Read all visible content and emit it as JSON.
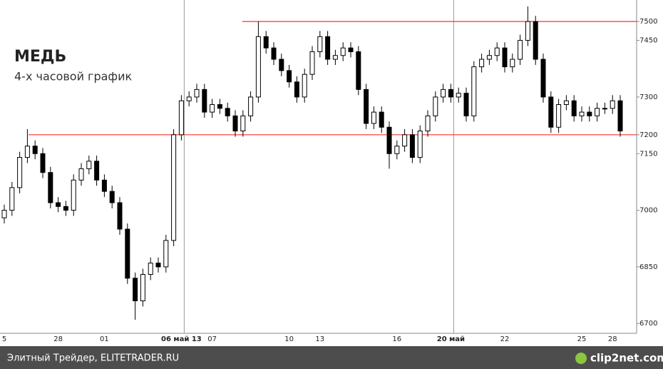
{
  "chart_data": {
    "type": "candlestick",
    "title": "МЕДЬ",
    "subtitle": "4-х часовой график",
    "footer": "Элитный Трейдер, ELITETRADER.RU",
    "watermark": "clip2net.com",
    "categories": [
      "5",
      null,
      null,
      null,
      null,
      null,
      null,
      "28",
      null,
      null,
      null,
      null,
      null,
      "01",
      null,
      null,
      null,
      null,
      null,
      null,
      null,
      null,
      null,
      "06 май 13",
      null,
      null,
      null,
      "07",
      null,
      null,
      null,
      null,
      null,
      null,
      null,
      null,
      null,
      "10",
      null,
      null,
      null,
      "13",
      null,
      null,
      null,
      null,
      null,
      null,
      null,
      null,
      null,
      "16",
      null,
      null,
      null,
      null,
      null,
      null,
      "20 май",
      null,
      null,
      null,
      null,
      null,
      null,
      "22",
      null,
      null,
      null,
      null,
      null,
      null,
      null,
      null,
      null,
      "25",
      null,
      null,
      null,
      "28",
      null
    ],
    "open": [
      6980,
      7000,
      7060,
      7140,
      7170,
      7150,
      7100,
      7020,
      7010,
      7000,
      7080,
      7110,
      7130,
      7080,
      7050,
      7020,
      6950,
      6820,
      6760,
      6830,
      6860,
      6850,
      6920,
      7200,
      7290,
      7300,
      7320,
      7260,
      7280,
      7270,
      7250,
      7210,
      7250,
      7300,
      7460,
      7430,
      7400,
      7370,
      7340,
      7300,
      7360,
      7420,
      7460,
      7400,
      7410,
      7430,
      7420,
      7320,
      7230,
      7260,
      7220,
      7150,
      7170,
      7200,
      7140,
      7210,
      7250,
      7300,
      7320,
      7300,
      7310,
      7250,
      7380,
      7400,
      7410,
      7430,
      7380,
      7400,
      7450,
      7500,
      7400,
      7300,
      7220,
      7280,
      7290,
      7250,
      7260,
      7250,
      7270,
      7270,
      7290
    ],
    "high": [
      7015,
      7075,
      7155,
      7215,
      7185,
      7165,
      7115,
      7035,
      7025,
      7095,
      7125,
      7145,
      7145,
      7095,
      7065,
      7035,
      6965,
      6835,
      6845,
      6875,
      6875,
      6935,
      7215,
      7305,
      7315,
      7335,
      7335,
      7295,
      7295,
      7285,
      7265,
      7265,
      7315,
      7500,
      7475,
      7445,
      7415,
      7385,
      7355,
      7375,
      7435,
      7475,
      7475,
      7425,
      7445,
      7445,
      7435,
      7335,
      7275,
      7275,
      7235,
      7185,
      7215,
      7215,
      7225,
      7265,
      7315,
      7335,
      7335,
      7325,
      7325,
      7395,
      7415,
      7425,
      7445,
      7445,
      7415,
      7465,
      7540,
      7515,
      7415,
      7315,
      7295,
      7305,
      7305,
      7275,
      7275,
      7285,
      7285,
      7305,
      7305
    ],
    "low": [
      6965,
      6985,
      7045,
      7125,
      7135,
      7085,
      7005,
      6995,
      6985,
      6985,
      7065,
      7095,
      7065,
      7035,
      7005,
      6935,
      6805,
      6710,
      6745,
      6815,
      6835,
      6835,
      6905,
      7185,
      7275,
      7285,
      7245,
      7245,
      7255,
      7235,
      7195,
      7195,
      7235,
      7285,
      7415,
      7385,
      7355,
      7325,
      7285,
      7285,
      7345,
      7405,
      7385,
      7385,
      7395,
      7405,
      7305,
      7215,
      7215,
      7205,
      7110,
      7135,
      7155,
      7125,
      7125,
      7195,
      7235,
      7285,
      7285,
      7285,
      7235,
      7235,
      7365,
      7385,
      7395,
      7365,
      7365,
      7385,
      7435,
      7385,
      7285,
      7205,
      7205,
      7265,
      7235,
      7235,
      7235,
      7235,
      7255,
      7255,
      7195
    ],
    "close": [
      7000,
      7060,
      7140,
      7170,
      7150,
      7100,
      7020,
      7010,
      7000,
      7080,
      7110,
      7130,
      7080,
      7050,
      7020,
      6950,
      6820,
      6760,
      6830,
      6860,
      6850,
      6920,
      7200,
      7290,
      7300,
      7320,
      7260,
      7280,
      7270,
      7250,
      7210,
      7250,
      7300,
      7460,
      7430,
      7400,
      7370,
      7340,
      7300,
      7360,
      7420,
      7460,
      7400,
      7410,
      7430,
      7420,
      7320,
      7230,
      7260,
      7220,
      7150,
      7170,
      7200,
      7140,
      7210,
      7250,
      7300,
      7320,
      7300,
      7310,
      7250,
      7380,
      7400,
      7410,
      7430,
      7380,
      7400,
      7450,
      7500,
      7400,
      7300,
      7220,
      7280,
      7290,
      7250,
      7260,
      7250,
      7270,
      7270,
      7290,
      7210
    ],
    "ylim": [
      6674,
      7557
    ],
    "yticks": [
      7500,
      7450,
      7300,
      7200,
      7150,
      7000,
      6850,
      6700
    ],
    "hlines": [
      7500,
      7200
    ],
    "hline_color": "#ff3030",
    "up_color": "#ffffff",
    "down_color": "#000000"
  }
}
